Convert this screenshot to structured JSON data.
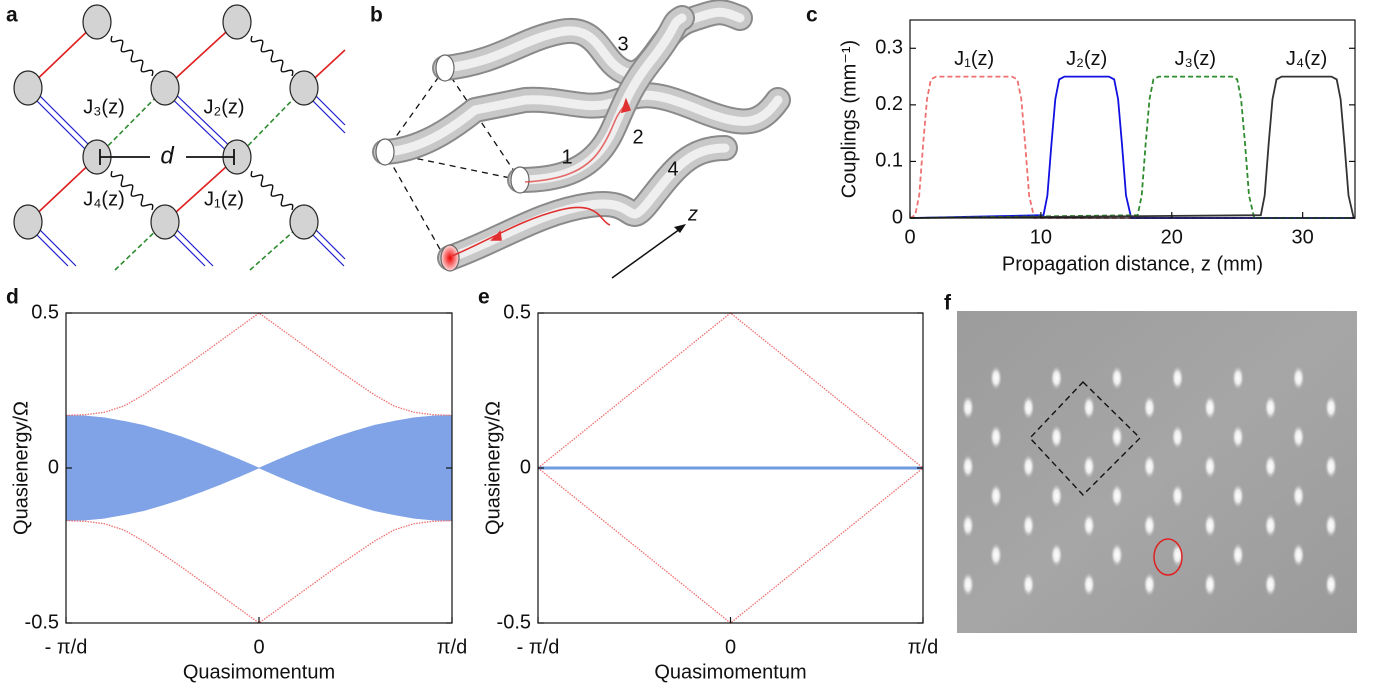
{
  "panel_labels": [
    "a",
    "b",
    "c",
    "d",
    "e",
    "f"
  ],
  "diagram_a": {
    "labels": [
      "J₃(z)",
      "J₂(z)",
      "J₄(z)",
      "J₁(z)"
    ],
    "distance_label": "d"
  },
  "diagram_b": {
    "waveguide_labels": [
      "1",
      "2",
      "3",
      "4"
    ],
    "axis_label": "z"
  },
  "chart_data": [
    {
      "type": "line",
      "xlabel": "Propagation distance, z (mm)",
      "ylabel": "Couplings (mm⁻¹)",
      "xlim": [
        0,
        34
      ],
      "ylim": [
        0,
        0.35
      ],
      "xticks": [
        0,
        10,
        20,
        30
      ],
      "yticks": [
        0,
        0.1,
        0.2,
        0.3
      ],
      "series": [
        {
          "name": "J₁(z)",
          "color": "#f07070",
          "dashed": true,
          "x": [
            0,
            0.4,
            0.7,
            1.0,
            1.3,
            1.6,
            2.0,
            7.8,
            8.2,
            8.5,
            8.8,
            9.1,
            9.5,
            34
          ],
          "values": [
            0,
            0.005,
            0.04,
            0.13,
            0.21,
            0.245,
            0.25,
            0.25,
            0.245,
            0.21,
            0.13,
            0.04,
            0,
            0
          ]
        },
        {
          "name": "J₂(z)",
          "color": "#1010e0",
          "dashed": false,
          "x": [
            0,
            10.2,
            10.5,
            10.8,
            11.1,
            11.4,
            11.8,
            15.2,
            15.6,
            15.9,
            16.2,
            16.5,
            16.9,
            34
          ],
          "values": [
            0,
            0.005,
            0.04,
            0.13,
            0.21,
            0.245,
            0.25,
            0.25,
            0.245,
            0.21,
            0.13,
            0.04,
            0,
            0
          ]
        },
        {
          "name": "J₃(z)",
          "color": "#2e8b2e",
          "dashed": true,
          "x": [
            0,
            17.4,
            17.7,
            18.0,
            18.3,
            18.6,
            19.0,
            24.6,
            25.0,
            25.3,
            25.6,
            25.9,
            26.3,
            34
          ],
          "values": [
            0,
            0.005,
            0.04,
            0.13,
            0.21,
            0.245,
            0.25,
            0.25,
            0.245,
            0.21,
            0.13,
            0.04,
            0,
            0
          ]
        },
        {
          "name": "J₄(z)",
          "color": "#333333",
          "dashed": false,
          "x": [
            0,
            26.8,
            27.1,
            27.4,
            27.7,
            28.0,
            28.4,
            32.2,
            32.6,
            32.9,
            33.2,
            33.5,
            33.9,
            34
          ],
          "values": [
            0,
            0.005,
            0.04,
            0.13,
            0.21,
            0.245,
            0.25,
            0.25,
            0.245,
            0.21,
            0.13,
            0.04,
            0,
            0
          ]
        }
      ]
    },
    {
      "type": "band",
      "xlabel": "Quasimomentum",
      "ylabel": "Quasienergy/Ω",
      "xlim": [
        -1,
        1
      ],
      "ylim": [
        -0.5,
        0.5
      ],
      "xticks": [
        {
          "value": -1,
          "label": "- π/d"
        },
        0,
        {
          "value": 1,
          "label": "π/d"
        }
      ],
      "yticks": [
        -0.5,
        0,
        0.5
      ],
      "bulk": {
        "color": "#7fa3e6",
        "x": [
          -1,
          -0.9,
          -0.8,
          -0.7,
          -0.6,
          -0.5,
          -0.4,
          -0.3,
          -0.2,
          -0.1,
          0,
          0.1,
          0.2,
          0.3,
          0.4,
          0.5,
          0.6,
          0.7,
          0.8,
          0.9,
          1
        ],
        "upper": [
          0.17,
          0.168,
          0.162,
          0.151,
          0.138,
          0.12,
          0.1,
          0.077,
          0.053,
          0.027,
          0,
          0.027,
          0.053,
          0.077,
          0.1,
          0.12,
          0.138,
          0.151,
          0.162,
          0.168,
          0.17
        ],
        "lower": [
          -0.17,
          -0.168,
          -0.162,
          -0.151,
          -0.138,
          -0.12,
          -0.1,
          -0.077,
          -0.053,
          -0.027,
          0,
          -0.027,
          -0.053,
          -0.077,
          -0.1,
          -0.12,
          -0.138,
          -0.151,
          -0.162,
          -0.168,
          -0.17
        ]
      },
      "series": [
        {
          "color": "#f07070",
          "x": [
            -1,
            -0.9,
            -0.8,
            -0.7,
            -0.6,
            -0.4,
            -0.2,
            0,
            0.2,
            0.4,
            0.6,
            0.7,
            0.8,
            0.9,
            1
          ],
          "values": [
            0.17,
            0.172,
            0.18,
            0.2,
            0.235,
            0.32,
            0.41,
            0.5,
            0.41,
            0.32,
            0.235,
            0.2,
            0.18,
            0.172,
            0.17
          ]
        },
        {
          "color": "#f07070",
          "x": [
            -1,
            -0.9,
            -0.8,
            -0.7,
            -0.6,
            -0.4,
            -0.2,
            0,
            0.2,
            0.4,
            0.6,
            0.7,
            0.8,
            0.9,
            1
          ],
          "values": [
            -0.17,
            -0.172,
            -0.18,
            -0.2,
            -0.235,
            -0.32,
            -0.41,
            -0.5,
            -0.41,
            -0.32,
            -0.235,
            -0.2,
            -0.18,
            -0.172,
            -0.17
          ]
        }
      ]
    },
    {
      "type": "band",
      "xlabel": "Quasimomentum",
      "ylabel": "Quasienergy/Ω",
      "xlim": [
        -1,
        1
      ],
      "ylim": [
        -0.5,
        0.5
      ],
      "xticks": [
        {
          "value": -1,
          "label": "- π/d"
        },
        0,
        {
          "value": 1,
          "label": "π/d"
        }
      ],
      "yticks": [
        -0.5,
        0,
        0.5
      ],
      "series": [
        {
          "color": "#6f9be0",
          "width": 3,
          "x": [
            -1,
            1
          ],
          "values": [
            0,
            0
          ]
        },
        {
          "color": "#f07070",
          "x": [
            -1,
            0,
            1
          ],
          "values": [
            0,
            0.5,
            0
          ]
        },
        {
          "color": "#f07070",
          "x": [
            -1,
            0,
            1
          ],
          "values": [
            0,
            -0.5,
            0
          ]
        }
      ]
    }
  ]
}
